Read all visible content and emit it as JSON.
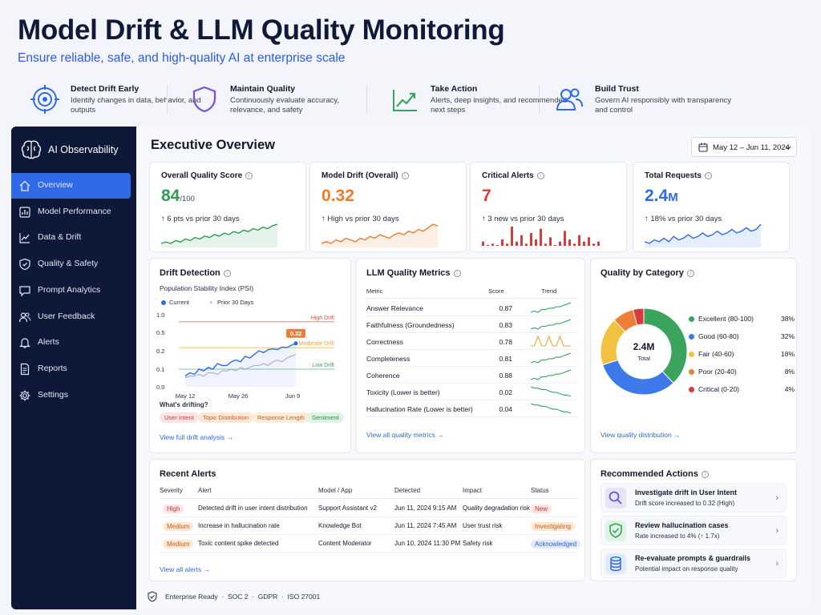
{
  "hero": {
    "title": "Model Drift & LLM Quality Monitoring",
    "subtitle": "Ensure reliable, safe, and high-quality AI at enterprise scale"
  },
  "features": [
    {
      "title": "Detect Drift Early",
      "desc": "Identify changes in data, behavior, and outputs",
      "icon": "target-icon"
    },
    {
      "title": "Maintain Quality",
      "desc": "Continuously evaluate accuracy, relevance, and safety",
      "icon": "shield-icon"
    },
    {
      "title": "Take Action",
      "desc": "Alerts, deep insights, and recommended next steps",
      "icon": "trend-up-icon"
    },
    {
      "title": "Build Trust",
      "desc": "Govern AI responsibly with transparency and control",
      "icon": "users-icon"
    }
  ],
  "sidebar": {
    "brand": "AI Observability",
    "items": [
      {
        "label": "Overview",
        "icon": "home-icon",
        "active": true
      },
      {
        "label": "Model Performance",
        "icon": "bar-chart-icon"
      },
      {
        "label": "Data & Drift",
        "icon": "line-chart-icon"
      },
      {
        "label": "Quality & Safety",
        "icon": "shield-check-icon"
      },
      {
        "label": "Prompt Analytics",
        "icon": "chat-icon"
      },
      {
        "label": "User Feedback",
        "icon": "users-icon"
      },
      {
        "label": "Alerts",
        "icon": "bell-icon"
      },
      {
        "label": "Reports",
        "icon": "document-icon"
      },
      {
        "label": "Settings",
        "icon": "gear-icon"
      }
    ]
  },
  "header": {
    "title": "Executive Overview",
    "date_range": "May 12 – Jun 11, 2024"
  },
  "kpis": [
    {
      "title": "Overall Quality Score",
      "value": "84",
      "unit": "/100",
      "delta": "↑ 6 pts vs prior 30 days",
      "color": "#2f9d55",
      "spark": [
        4,
        5,
        4,
        6,
        5,
        7,
        6,
        8,
        7,
        9,
        8,
        10,
        9,
        11,
        10,
        12,
        11,
        13,
        12,
        14,
        13,
        15,
        14,
        16,
        17
      ]
    },
    {
      "title": "Model Drift (Overall)",
      "value": "0.32",
      "unit": "",
      "delta": "↑ High vs prior 30 days",
      "color": "#ee7a2a",
      "spark": [
        3,
        4,
        3,
        5,
        4,
        6,
        5,
        4,
        6,
        5,
        7,
        6,
        8,
        7,
        6,
        8,
        9,
        8,
        10,
        9,
        11,
        10,
        12,
        14,
        13
      ]
    },
    {
      "title": "Critical Alerts",
      "value": "7",
      "unit": "",
      "delta": "↑ 3 new vs prior 30 days",
      "color": "#d93a3a",
      "spark": [
        2,
        0,
        1,
        0,
        3,
        1,
        9,
        2,
        5,
        1,
        6,
        3,
        8,
        1,
        4,
        0,
        2,
        7,
        3,
        1,
        5,
        2,
        4,
        1,
        2
      ]
    },
    {
      "title": "Total Requests",
      "value": "2.4",
      "unit": "M",
      "delta": "↑ 18% vs prior 30 days",
      "color": "#2f6ae8",
      "spark": [
        6,
        5,
        7,
        6,
        8,
        6,
        9,
        7,
        8,
        10,
        8,
        9,
        11,
        9,
        10,
        12,
        10,
        11,
        13,
        11,
        12,
        14,
        12,
        13,
        16
      ]
    }
  ],
  "drift": {
    "title": "Drift Detection",
    "subtitle": "Population Stability Index (PSI)",
    "legend_current": "Current",
    "legend_prior": "Prior 30 Days",
    "thresholds": [
      {
        "label": "High Drift",
        "value": 0.8,
        "color": "#e24a4a"
      },
      {
        "label": "Moderate Drift",
        "value": 0.25,
        "color": "#f0a53a"
      },
      {
        "label": "Low Drift",
        "value": 0.1,
        "color": "#3aa35c"
      }
    ],
    "callout": "0.32",
    "y_ticks": [
      "1.0",
      "0.5",
      "0.2",
      "0.1",
      "0.0"
    ],
    "x_ticks": [
      "May 12",
      "May 26",
      "Jun 9"
    ],
    "current": [
      0.06,
      0.08,
      0.07,
      0.1,
      0.09,
      0.11,
      0.1,
      0.13,
      0.12,
      0.12,
      0.14,
      0.15,
      0.14,
      0.17,
      0.16,
      0.18,
      0.2,
      0.19,
      0.22,
      0.23,
      0.22,
      0.26,
      0.25,
      0.29,
      0.32
    ],
    "prior": [
      0.05,
      0.06,
      0.06,
      0.07,
      0.06,
      0.08,
      0.08,
      0.07,
      0.09,
      0.09,
      0.1,
      0.09,
      0.11,
      0.1,
      0.11,
      0.12,
      0.12,
      0.13,
      0.12,
      0.14,
      0.15,
      0.14,
      0.16,
      0.17,
      0.18
    ],
    "drifting_label": "What's drifting?",
    "chips": [
      {
        "label": "User Intent",
        "bg": "#fde4e4",
        "fg": "#c23a3a"
      },
      {
        "label": "Topic Distribution",
        "bg": "#fde8d6",
        "fg": "#c4601e"
      },
      {
        "label": "Response Length",
        "bg": "#fdebdc",
        "fg": "#c4601e"
      },
      {
        "label": "Sentiment",
        "bg": "#dff3e4",
        "fg": "#2c8a4b"
      }
    ],
    "link": "View full drift analysis →"
  },
  "llm": {
    "title": "LLM Quality Metrics",
    "col_metric": "Metric",
    "col_score": "Score",
    "col_trend": "Trend",
    "rows": [
      {
        "name": "Answer Relevance",
        "score": "0.87",
        "dir": "up"
      },
      {
        "name": "Faithfulness (Groundedness)",
        "score": "0.83",
        "dir": "up"
      },
      {
        "name": "Correctness",
        "score": "0.78",
        "dir": "flat"
      },
      {
        "name": "Completeness",
        "score": "0.81",
        "dir": "up"
      },
      {
        "name": "Coherence",
        "score": "0.88",
        "dir": "up"
      },
      {
        "name": "Toxicity (Lower is better)",
        "score": "0.02",
        "dir": "down"
      },
      {
        "name": "Hallucination Rate (Lower is better)",
        "score": "0.04",
        "dir": "down"
      }
    ],
    "link": "View all quality metrics →"
  },
  "category": {
    "title": "Quality by Category",
    "center_value": "2.4M",
    "center_label": "Total",
    "items": [
      {
        "label": "Excellent (80-100)",
        "pct": "38%",
        "value": 38,
        "color": "#3aa35c"
      },
      {
        "label": "Good (60-80)",
        "pct": "32%",
        "value": 32,
        "color": "#3d79ea"
      },
      {
        "label": "Fair (40-60)",
        "pct": "18%",
        "value": 18,
        "color": "#f2c142"
      },
      {
        "label": "Poor (20-40)",
        "pct": "8%",
        "value": 8,
        "color": "#f07d36"
      },
      {
        "label": "Critical (0-20)",
        "pct": "4%",
        "value": 4,
        "color": "#d93a3a"
      }
    ],
    "link": "View quality distribution →"
  },
  "alerts": {
    "title": "Recent Alerts",
    "cols": [
      "Severity",
      "Alert",
      "Model / App",
      "Detected",
      "Impact",
      "Status"
    ],
    "rows": [
      {
        "severity": "High",
        "sev_bg": "#fde4e4",
        "sev_fg": "#c23a3a",
        "alert": "Detected drift in user intent distribution",
        "model": "Support Assistant v2",
        "detected": "Jun 11, 2024 9:15 AM",
        "impact": "Quality degradation risk",
        "status": "New",
        "st_bg": "#fde4e4",
        "st_fg": "#c23a3a"
      },
      {
        "severity": "Medium",
        "sev_bg": "#fde8d6",
        "sev_fg": "#c4601e",
        "alert": "Increase in hallucination rate",
        "model": "Knowledge Bot",
        "detected": "Jun 11, 2024 7:45 AM",
        "impact": "User trust risk",
        "status": "Investigating",
        "st_bg": "#fde8d6",
        "st_fg": "#c4601e"
      },
      {
        "severity": "Medium",
        "sev_bg": "#fde8d6",
        "sev_fg": "#c4601e",
        "alert": "Toxic content spike detected",
        "model": "Content Moderator",
        "detected": "Jun 10, 2024 11:30 PM",
        "impact": "Safety risk",
        "status": "Acknowledged",
        "st_bg": "#e2ebfd",
        "st_fg": "#2f5fc8"
      }
    ],
    "link": "View all alerts →"
  },
  "actions": {
    "title": "Recommended Actions",
    "items": [
      {
        "title": "Investigate drift in User Intent",
        "desc": "Drift score increased to 0.32 (High)",
        "icon": "search-icon",
        "bg": "#e6e4fb"
      },
      {
        "title": "Review hallucination cases",
        "desc": "Rate increased to 4% (↑ 1.7x)",
        "icon": "shield-check-icon",
        "bg": "#dff3e4"
      },
      {
        "title": "Re-evaluate prompts & guardrails",
        "desc": "Potential impact on response quality",
        "icon": "database-icon",
        "bg": "#e2ebfd"
      }
    ]
  },
  "footer": {
    "text": "Enterprise Ready  ·  SOC 2  ·  GDPR  ·  ISO 27001"
  }
}
